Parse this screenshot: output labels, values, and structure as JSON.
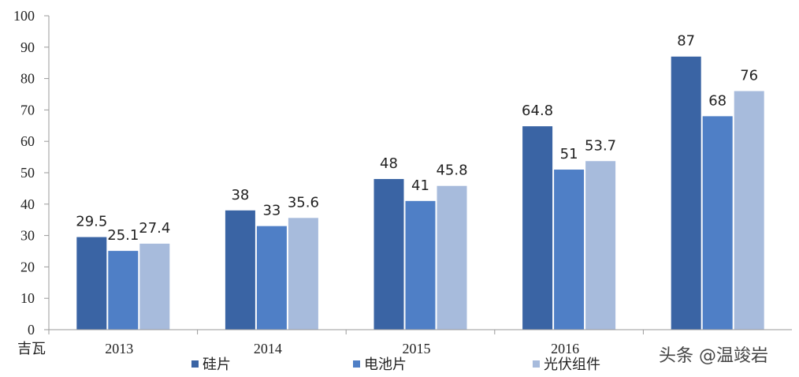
{
  "chart_data": {
    "type": "bar",
    "categories": [
      "2013",
      "2014",
      "2015",
      "2016",
      ""
    ],
    "series": [
      {
        "name": "硅片",
        "color": "#3a64a4",
        "values": [
          29.5,
          38,
          48,
          64.8,
          87
        ]
      },
      {
        "name": "电池片",
        "color": "#4f7fc6",
        "values": [
          25.1,
          33,
          41,
          51,
          68
        ]
      },
      {
        "name": "光伏组件",
        "color": "#a7bbdc",
        "values": [
          27.4,
          35.6,
          45.8,
          53.7,
          76
        ]
      }
    ],
    "data_labels": [
      [
        "29.5",
        "38",
        "48",
        "64.8",
        "87"
      ],
      [
        "25.1",
        "33",
        "41",
        "51",
        "68"
      ],
      [
        "27.4",
        "35.6",
        "45.8",
        "53.7",
        "76"
      ]
    ],
    "yticks": [
      "0",
      "10",
      "20",
      "30",
      "40",
      "50",
      "60",
      "70",
      "80",
      "90",
      "100"
    ],
    "ylim": [
      0,
      100
    ],
    "ylabel": "吉瓦",
    "legend_position": "bottom",
    "grid": false,
    "title": ""
  },
  "watermark": "头条 @温竣岩"
}
